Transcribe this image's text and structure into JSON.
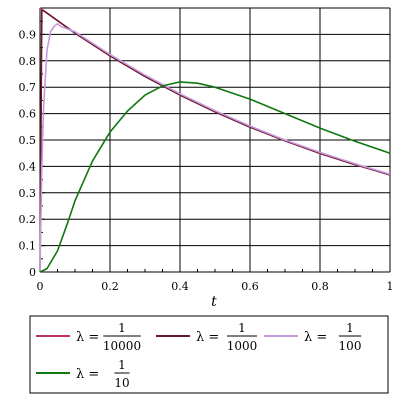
{
  "chart_data": {
    "type": "line",
    "xlabel": "t",
    "ylabel": "",
    "xlim": [
      0,
      1
    ],
    "ylim": [
      0,
      1
    ],
    "xticks": [
      0,
      0.2,
      0.4,
      0.6,
      0.8,
      1
    ],
    "xtick_labels": [
      "0",
      "0.2",
      "0.4",
      "0.6",
      "0.8",
      "1"
    ],
    "yticks": [
      0,
      0.1,
      0.2,
      0.3,
      0.4,
      0.5,
      0.6,
      0.7,
      0.8,
      0.9
    ],
    "ytick_labels": [
      "0",
      "0.1",
      "0.2",
      "0.3",
      "0.4",
      "0.5",
      "0.6",
      "0.7",
      "0.8",
      "0.9"
    ],
    "grid": true,
    "legend_position": "bottom",
    "series": [
      {
        "name": "λ = 1/10000",
        "legend_prefix": "λ =",
        "legend_num": "1",
        "legend_den": "10000",
        "color": "#c0306a",
        "x": [
          0,
          0.1,
          0.2,
          0.3,
          0.4,
          0.5,
          0.6,
          0.7,
          0.8,
          0.9,
          1
        ],
        "y": [
          1,
          0.905,
          0.819,
          0.741,
          0.67,
          0.607,
          0.549,
          0.497,
          0.449,
          0.407,
          0.368
        ]
      },
      {
        "name": "λ = 1/1000",
        "legend_prefix": "λ =",
        "legend_num": "1",
        "legend_den": "1000",
        "color": "#6a1a2a",
        "x": [
          0,
          0.005,
          0.01,
          0.1,
          0.2,
          0.3,
          0.4,
          0.5,
          0.6,
          0.7,
          0.8,
          0.9,
          1
        ],
        "y": [
          0,
          0.99,
          0.99,
          0.905,
          0.819,
          0.741,
          0.671,
          0.607,
          0.549,
          0.497,
          0.45,
          0.407,
          0.368
        ]
      },
      {
        "name": "λ = 1/100",
        "legend_prefix": "λ =",
        "legend_num": "1",
        "legend_den": "100",
        "color": "#c79ae0",
        "x": [
          0,
          0.005,
          0.01,
          0.02,
          0.03,
          0.04,
          0.05,
          0.06,
          0.08,
          0.1,
          0.2,
          0.3,
          0.4,
          0.5,
          0.6,
          0.7,
          0.8,
          0.9,
          1
        ],
        "y": [
          0,
          0.39,
          0.62,
          0.84,
          0.91,
          0.93,
          0.94,
          0.93,
          0.92,
          0.91,
          0.824,
          0.746,
          0.675,
          0.611,
          0.553,
          0.5,
          0.453,
          0.41,
          0.371
        ]
      },
      {
        "name": "λ = 1/10",
        "legend_prefix": "λ =",
        "legend_num": "1",
        "legend_den": "10",
        "color": "#117711",
        "x": [
          0,
          0.02,
          0.05,
          0.08,
          0.1,
          0.15,
          0.2,
          0.25,
          0.3,
          0.35,
          0.4,
          0.45,
          0.5,
          0.6,
          0.7,
          0.8,
          0.9,
          1
        ],
        "y": [
          0,
          0.013,
          0.08,
          0.19,
          0.27,
          0.42,
          0.53,
          0.61,
          0.67,
          0.705,
          0.72,
          0.715,
          0.7,
          0.655,
          0.6,
          0.545,
          0.495,
          0.45
        ]
      }
    ]
  }
}
